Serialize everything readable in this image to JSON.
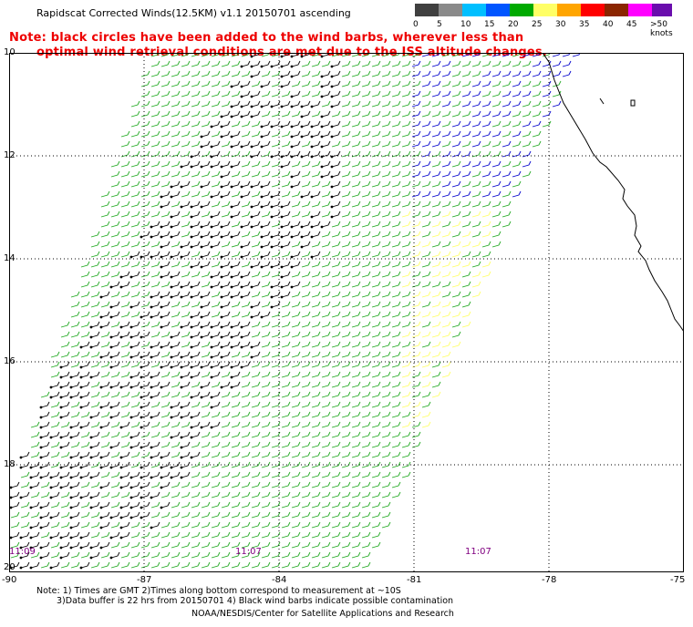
{
  "title": "Rapidscat Corrected Winds(12.5KM) v1.1 20150701 ascending",
  "note_line1": "Note: black circles have been added to the wind barbs, wherever less than",
  "note_line2": "optimal wind retrieval conditions are met due to the ISS altitude changes.",
  "scale": {
    "labels": [
      "0",
      "5",
      "10",
      "15",
      "20",
      "25",
      "30",
      "35",
      "40",
      "45",
      ">50 knots"
    ],
    "colors": [
      "#404040",
      "#8a8a8a",
      "#00bfff",
      "#0055ff",
      "#00aa00",
      "#ffff66",
      "#ffa500",
      "#ff0000",
      "#8b2500",
      "#ff00ff",
      "#6a0dad"
    ]
  },
  "lat_labels": [
    "10",
    "12",
    "14",
    "16",
    "18",
    "20"
  ],
  "lon_labels": [
    "-90",
    "-87",
    "-84",
    "-81",
    "-78",
    "-75"
  ],
  "times": [
    "11:09",
    "11:07",
    "11:07"
  ],
  "footer_line1": "Note: 1) Times are GMT 2)Times along bottom correspond to measurement at ~10S",
  "footer_line2": "3)Data buffer is 22 hrs from 20150701 4) Black wind barbs indicate possible contamination",
  "footer_line3": "NOAA/NESDIS/Center for Satellite Applications and Research"
}
